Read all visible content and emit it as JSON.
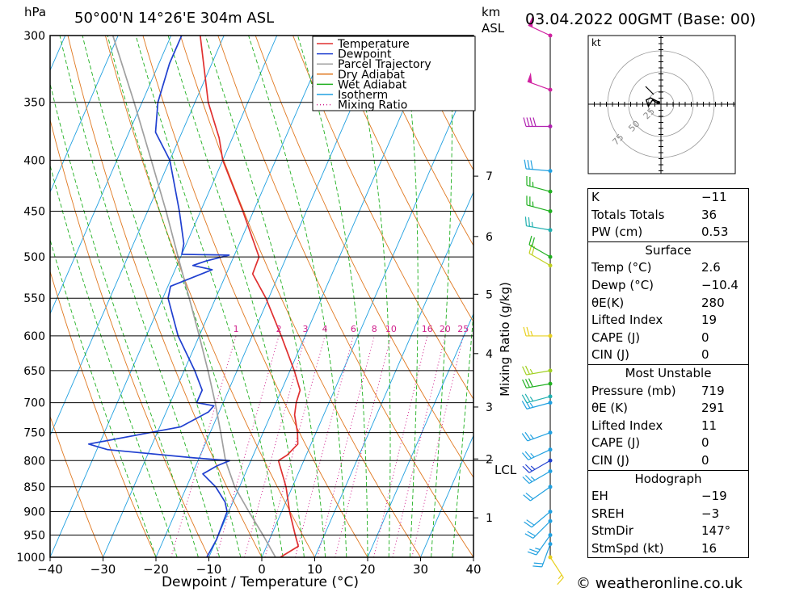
{
  "header": {
    "location": "50°00'N  14°26'E  304m  ASL",
    "datetime": "03.04.2022  00GMT  (Base: 00)",
    "pressure_unit": "hPa",
    "height_unit_1": "km",
    "height_unit_2": "ASL"
  },
  "footer": {
    "credit": "© weatheronline.co.uk"
  },
  "legend": [
    {
      "label": "Temperature",
      "color": "#e03030",
      "style": "solid"
    },
    {
      "label": "Dewpoint",
      "color": "#2040d0",
      "style": "solid"
    },
    {
      "label": "Parcel Trajectory",
      "color": "#a0a0a0",
      "style": "solid"
    },
    {
      "label": "Dry Adiabat",
      "color": "#e07820",
      "style": "solid"
    },
    {
      "label": "Wet Adiabat",
      "color": "#20b020",
      "style": "solid"
    },
    {
      "label": "Isotherm",
      "color": "#20a0e0",
      "style": "solid"
    },
    {
      "label": "Mixing Ratio",
      "color": "#d0208c",
      "style": "dotted"
    }
  ],
  "chart_data": {
    "type": "line",
    "title": "Skew-T log-P diagram",
    "xlabel": "Dewpoint / Temperature (°C)",
    "ylabel": "hPa",
    "right_axis_label": "Mixing Ratio (g/kg)",
    "x_ticks": [
      -40,
      -30,
      -20,
      -10,
      0,
      10,
      20,
      30,
      40
    ],
    "x_tick_labels": [
      "−40",
      "−30",
      "−20",
      "−10",
      "0",
      "10",
      "20",
      "30",
      "40"
    ],
    "pressure_levels": [
      300,
      350,
      400,
      450,
      500,
      550,
      600,
      650,
      700,
      750,
      800,
      850,
      900,
      950,
      1000
    ],
    "pmin": 300,
    "pmax": 1000,
    "skew_deg_per_lnp": 35.6,
    "km_ticks": [
      {
        "km": 1,
        "p": 913
      },
      {
        "km": 2,
        "p": 797
      },
      {
        "km": 3,
        "p": 707
      },
      {
        "km": 4,
        "p": 625
      },
      {
        "km": 5,
        "p": 545
      },
      {
        "km": 6,
        "p": 477
      },
      {
        "km": 7,
        "p": 415
      }
    ],
    "lcl": {
      "p": 800,
      "label": "LCL"
    },
    "mixing_ratio_labels": [
      "1",
      "2",
      "3",
      "4",
      "6",
      "8",
      "10",
      "16",
      "20",
      "25"
    ],
    "mixing_ratio_values": [
      1,
      2,
      3,
      4,
      6,
      8,
      10,
      16,
      20,
      25
    ],
    "isotherms": [
      -100,
      -90,
      -80,
      -70,
      -60,
      -50,
      -40,
      -30,
      -20,
      -10,
      0,
      10,
      20,
      30,
      40
    ],
    "dry_adiabats_theta": [
      -30,
      -20,
      -10,
      0,
      10,
      20,
      30,
      40,
      50,
      60,
      70,
      80,
      90,
      100,
      110,
      120,
      130,
      140,
      150
    ],
    "wet_adiabats_start": [
      -20,
      -16,
      -12,
      -8,
      -4,
      0,
      4,
      8,
      12,
      16,
      20,
      24,
      28,
      32,
      36
    ],
    "series": [
      {
        "name": "Temperature",
        "color": "#e03030",
        "points": [
          [
            1000,
            3.5
          ],
          [
            975,
            6
          ],
          [
            950,
            4.5
          ],
          [
            900,
            1.5
          ],
          [
            850,
            -1.2
          ],
          [
            800,
            -4.8
          ],
          [
            790,
            -3.6
          ],
          [
            770,
            -2.5
          ],
          [
            750,
            -3.5
          ],
          [
            720,
            -5.5
          ],
          [
            700,
            -6.2
          ],
          [
            680,
            -6.5
          ],
          [
            650,
            -9.2
          ],
          [
            600,
            -14.5
          ],
          [
            550,
            -20.5
          ],
          [
            520,
            -25
          ],
          [
            500,
            -25.2
          ],
          [
            450,
            -32
          ],
          [
            400,
            -40
          ],
          [
            380,
            -42.5
          ],
          [
            350,
            -47.5
          ],
          [
            300,
            -54.5
          ]
        ]
      },
      {
        "name": "Dewpoint",
        "color": "#2040d0",
        "points": [
          [
            1000,
            -10.4
          ],
          [
            960,
            -10
          ],
          [
            900,
            -10.3
          ],
          [
            880,
            -11.5
          ],
          [
            850,
            -14.5
          ],
          [
            825,
            -18
          ],
          [
            810,
            -16
          ],
          [
            800,
            -14
          ],
          [
            795,
            -21
          ],
          [
            780,
            -38
          ],
          [
            770,
            -42
          ],
          [
            740,
            -26
          ],
          [
            715,
            -22
          ],
          [
            705,
            -21.5
          ],
          [
            700,
            -25
          ],
          [
            680,
            -25
          ],
          [
            650,
            -28
          ],
          [
            600,
            -34
          ],
          [
            550,
            -39
          ],
          [
            535,
            -39.5
          ],
          [
            515,
            -33
          ],
          [
            510,
            -37
          ],
          [
            505,
            -35
          ],
          [
            498,
            -31
          ],
          [
            497,
            -40
          ],
          [
            485,
            -40.5
          ],
          [
            450,
            -44
          ],
          [
            400,
            -50
          ],
          [
            375,
            -55
          ],
          [
            350,
            -57
          ],
          [
            320,
            -58
          ],
          [
            300,
            -58
          ]
        ]
      },
      {
        "name": "Parcel Trajectory",
        "color": "#a0a0a0",
        "points": [
          [
            1000,
            2.6
          ],
          [
            950,
            -1.6
          ],
          [
            900,
            -6.2
          ],
          [
            850,
            -10.9
          ],
          [
            800,
            -14.8
          ],
          [
            750,
            -18
          ],
          [
            700,
            -21.5
          ],
          [
            650,
            -25.5
          ],
          [
            600,
            -30
          ],
          [
            550,
            -35
          ],
          [
            500,
            -40.5
          ],
          [
            450,
            -46.5
          ],
          [
            400,
            -53.5
          ],
          [
            350,
            -61.5
          ],
          [
            300,
            -71
          ]
        ]
      }
    ],
    "winds": [
      {
        "p": 1000,
        "color": "#e8d020",
        "spd": 16,
        "dir": 147
      },
      {
        "p": 970,
        "color": "#20a0e0",
        "spd": 22,
        "dir": 200
      },
      {
        "p": 950,
        "color": "#20a0e0",
        "spd": 25,
        "dir": 215
      },
      {
        "p": 920,
        "color": "#20a0e0",
        "spd": 22,
        "dir": 225
      },
      {
        "p": 900,
        "color": "#20a0e0",
        "spd": 20,
        "dir": 230
      },
      {
        "p": 850,
        "color": "#20a0e0",
        "spd": 20,
        "dir": 235
      },
      {
        "p": 820,
        "color": "#20a0e0",
        "spd": 25,
        "dir": 240
      },
      {
        "p": 800,
        "color": "#2040d0",
        "spd": 25,
        "dir": 240
      },
      {
        "p": 780,
        "color": "#20a0e0",
        "spd": 25,
        "dir": 245
      },
      {
        "p": 750,
        "color": "#20a0e0",
        "spd": 25,
        "dir": 250
      },
      {
        "p": 700,
        "color": "#20a0e0",
        "spd": 25,
        "dir": 255
      },
      {
        "p": 690,
        "color": "#20b0b0",
        "spd": 25,
        "dir": 255
      },
      {
        "p": 670,
        "color": "#20b020",
        "spd": 30,
        "dir": 260
      },
      {
        "p": 650,
        "color": "#a0d020",
        "spd": 25,
        "dir": 260
      },
      {
        "p": 600,
        "color": "#e8d020",
        "spd": 25,
        "dir": 270
      },
      {
        "p": 510,
        "color": "#c0d020",
        "spd": 20,
        "dir": 300
      },
      {
        "p": 500,
        "color": "#20b020",
        "spd": 20,
        "dir": 300
      },
      {
        "p": 470,
        "color": "#20b0b0",
        "spd": 25,
        "dir": 280
      },
      {
        "p": 450,
        "color": "#20b020",
        "spd": 25,
        "dir": 285
      },
      {
        "p": 430,
        "color": "#20b020",
        "spd": 25,
        "dir": 285
      },
      {
        "p": 410,
        "color": "#20a0e0",
        "spd": 30,
        "dir": 275
      },
      {
        "p": 370,
        "color": "#b020b0",
        "spd": 40,
        "dir": 270
      },
      {
        "p": 340,
        "color": "#d020a0",
        "spd": 50,
        "dir": 290
      },
      {
        "p": 300,
        "color": "#d020a0",
        "spd": 50,
        "dir": 295
      }
    ],
    "hodograph": {
      "unit": "kt",
      "ring_labels": [
        "25",
        "50",
        "75"
      ],
      "points_uv": [
        [
          -1,
          1
        ],
        [
          -3,
          2
        ],
        [
          -5,
          3
        ],
        [
          -7,
          2
        ],
        [
          -6,
          -1
        ],
        [
          -4,
          2
        ],
        [
          -1,
          0
        ]
      ]
    }
  },
  "stats": {
    "indices": [
      {
        "label": "K",
        "value": "−11"
      },
      {
        "label": "Totals Totals",
        "value": "36"
      },
      {
        "label": "PW (cm)",
        "value": "0.53"
      }
    ],
    "surface": {
      "title": "Surface",
      "rows": [
        {
          "label": "Temp (°C)",
          "value": "2.6"
        },
        {
          "label": "Dewp (°C)",
          "value": "−10.4"
        },
        {
          "label": "θE(K)",
          "value": "280"
        },
        {
          "label": "Lifted Index",
          "value": "19"
        },
        {
          "label": "CAPE (J)",
          "value": "0"
        },
        {
          "label": "CIN (J)",
          "value": "0"
        }
      ]
    },
    "most_unstable": {
      "title": "Most Unstable",
      "rows": [
        {
          "label": "Pressure (mb)",
          "value": "719"
        },
        {
          "label": "θE (K)",
          "value": "291"
        },
        {
          "label": "Lifted Index",
          "value": "11"
        },
        {
          "label": "CAPE (J)",
          "value": "0"
        },
        {
          "label": "CIN (J)",
          "value": "0"
        }
      ]
    },
    "hodograph": {
      "title": "Hodograph",
      "rows": [
        {
          "label": "EH",
          "value": "−19"
        },
        {
          "label": "SREH",
          "value": "−3"
        },
        {
          "label": "StmDir",
          "value": "147°"
        },
        {
          "label": "StmSpd (kt)",
          "value": "16"
        }
      ]
    }
  }
}
